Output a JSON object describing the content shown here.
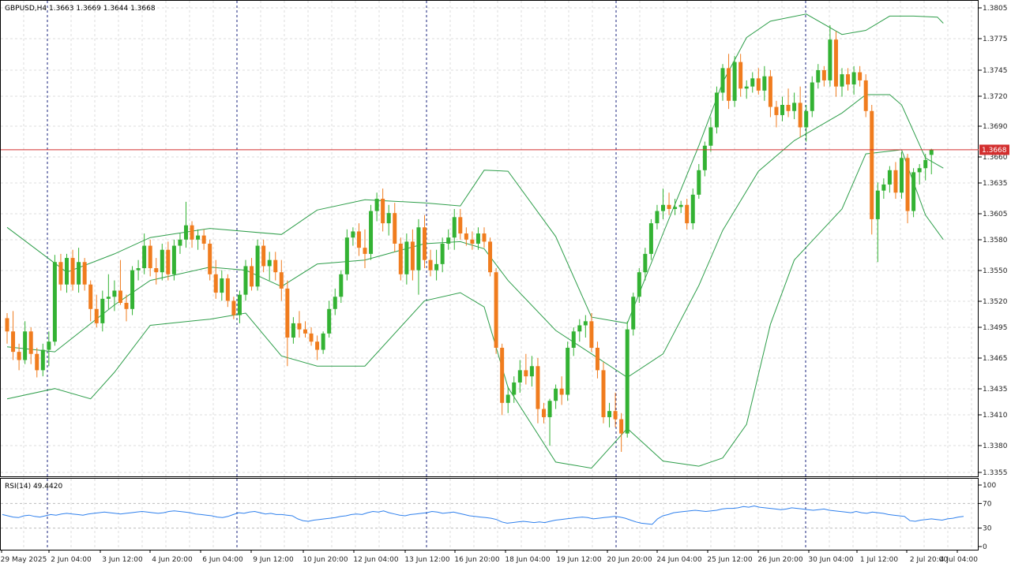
{
  "main_pane": {
    "header": "GBPUSD,H4  1.3663 1.3669 1.3644 1.3668",
    "price_ticks": [
      "1.3805",
      "1.3775",
      "1.3745",
      "1.3720",
      "1.3690",
      "1.3660",
      "1.3635",
      "1.3605",
      "1.3580",
      "1.3550",
      "1.3520",
      "1.3495",
      "1.3465",
      "1.3435",
      "1.3410",
      "1.3380",
      "1.3355"
    ],
    "current_price_label": "1.3668"
  },
  "rsi_pane": {
    "header": "RSI(14) 49.4420",
    "ticks": [
      "100",
      "70",
      "30",
      "0"
    ]
  },
  "time_axis": {
    "ticks": [
      "29 May 2025",
      "2 Jun 04:00",
      "3 Jun 12:00",
      "4 Jun 20:00",
      "6 Jun 04:00",
      "9 Jun 12:00",
      "10 Jun 20:00",
      "12 Jun 04:00",
      "13 Jun 12:00",
      "16 Jun 20:00",
      "18 Jun 04:00",
      "19 Jun 12:00",
      "20 Jun 20:00",
      "24 Jun 04:00",
      "25 Jun 12:00",
      "26 Jun 20:00",
      "30 Jun 04:00",
      "1 Jul 12:00",
      "2 Jul 20:00",
      "4 Jul 04:00"
    ]
  },
  "colors": {
    "bull": "#33b233",
    "bear": "#f07c1e",
    "band": "#2e9e4a",
    "grid": "#dcdcdc",
    "separator": "#1a237e",
    "price_line": "#d32f2f",
    "price_label_bg": "#d32f2f",
    "rsi_line": "#2f80ed",
    "axis_text": "#222222"
  },
  "chart_data": {
    "type": "candlestick",
    "symbol": "GBPUSD",
    "timeframe": "H4",
    "y_range": [
      1.3348,
      1.3814
    ],
    "rsi_range": [
      0,
      100
    ],
    "candles": [
      [
        1.3503,
        1.3508,
        1.3478,
        1.349
      ],
      [
        1.349,
        1.351,
        1.3462,
        1.347
      ],
      [
        1.347,
        1.3478,
        1.3452,
        1.3462
      ],
      [
        1.3462,
        1.35,
        1.3458,
        1.349
      ],
      [
        1.349,
        1.3494,
        1.3458,
        1.3468
      ],
      [
        1.3468,
        1.3474,
        1.3445,
        1.3452
      ],
      [
        1.3452,
        1.3478,
        1.3446,
        1.3472
      ],
      [
        1.3472,
        1.349,
        1.3456,
        1.348
      ],
      [
        1.348,
        1.3565,
        1.3476,
        1.3558
      ],
      [
        1.3558,
        1.3566,
        1.353,
        1.3536
      ],
      [
        1.3536,
        1.3566,
        1.3528,
        1.3562
      ],
      [
        1.3562,
        1.357,
        1.353,
        1.3536
      ],
      [
        1.3536,
        1.3572,
        1.3528,
        1.3558
      ],
      [
        1.3558,
        1.3562,
        1.353,
        1.3536
      ],
      [
        1.3536,
        1.354,
        1.35,
        1.3512
      ],
      [
        1.3512,
        1.3526,
        1.3494,
        1.3498
      ],
      [
        1.3498,
        1.353,
        1.349,
        1.3522
      ],
      [
        1.3522,
        1.3546,
        1.3512,
        1.3524
      ],
      [
        1.3524,
        1.354,
        1.351,
        1.353
      ],
      [
        1.353,
        1.356,
        1.3516,
        1.3518
      ],
      [
        1.3518,
        1.3526,
        1.35,
        1.3512
      ],
      [
        1.3512,
        1.3554,
        1.3506,
        1.355
      ],
      [
        1.355,
        1.356,
        1.354,
        1.3552
      ],
      [
        1.3552,
        1.3586,
        1.3546,
        1.3574
      ],
      [
        1.3574,
        1.358,
        1.3544,
        1.3552
      ],
      [
        1.3552,
        1.3562,
        1.3536,
        1.3548
      ],
      [
        1.3548,
        1.3576,
        1.354,
        1.357
      ],
      [
        1.357,
        1.3578,
        1.354,
        1.3546
      ],
      [
        1.3546,
        1.358,
        1.354,
        1.3574
      ],
      [
        1.3574,
        1.3586,
        1.3566,
        1.358
      ],
      [
        1.358,
        1.3617,
        1.3572,
        1.3594
      ],
      [
        1.3594,
        1.3598,
        1.3572,
        1.358
      ],
      [
        1.358,
        1.359,
        1.357,
        1.3584
      ],
      [
        1.3584,
        1.359,
        1.357,
        1.3576
      ],
      [
        1.3576,
        1.358,
        1.354,
        1.3546
      ],
      [
        1.3546,
        1.356,
        1.3522,
        1.3528
      ],
      [
        1.3528,
        1.355,
        1.352,
        1.3542
      ],
      [
        1.3542,
        1.3546,
        1.3514,
        1.352
      ],
      [
        1.352,
        1.3524,
        1.3502,
        1.3506
      ],
      [
        1.3506,
        1.353,
        1.3498,
        1.3526
      ],
      [
        1.3526,
        1.356,
        1.352,
        1.3554
      ],
      [
        1.3554,
        1.3562,
        1.353,
        1.3534
      ],
      [
        1.3534,
        1.358,
        1.353,
        1.3574
      ],
      [
        1.3574,
        1.358,
        1.3548,
        1.3554
      ],
      [
        1.3554,
        1.3568,
        1.354,
        1.356
      ],
      [
        1.356,
        1.3568,
        1.354,
        1.3548
      ],
      [
        1.3548,
        1.356,
        1.352,
        1.3532
      ],
      [
        1.3532,
        1.354,
        1.3456,
        1.3484
      ],
      [
        1.3484,
        1.3504,
        1.3478,
        1.3498
      ],
      [
        1.3498,
        1.351,
        1.3484,
        1.3492
      ],
      [
        1.3492,
        1.35,
        1.3484,
        1.3488
      ],
      [
        1.3488,
        1.3494,
        1.3476,
        1.348
      ],
      [
        1.348,
        1.3486,
        1.3462,
        1.3472
      ],
      [
        1.3472,
        1.349,
        1.3468,
        1.3488
      ],
      [
        1.3488,
        1.352,
        1.3484,
        1.3512
      ],
      [
        1.3512,
        1.3532,
        1.3506,
        1.3524
      ],
      [
        1.3524,
        1.355,
        1.3518,
        1.3546
      ],
      [
        1.3546,
        1.359,
        1.354,
        1.3582
      ],
      [
        1.3582,
        1.3592,
        1.3574,
        1.3588
      ],
      [
        1.3588,
        1.3596,
        1.3564,
        1.3572
      ],
      [
        1.3572,
        1.359,
        1.3552,
        1.3566
      ],
      [
        1.3566,
        1.3614,
        1.356,
        1.3608
      ],
      [
        1.3608,
        1.3626,
        1.3598,
        1.362
      ],
      [
        1.362,
        1.363,
        1.3588,
        1.3596
      ],
      [
        1.3596,
        1.3614,
        1.3584,
        1.3606
      ],
      [
        1.3606,
        1.3616,
        1.3568,
        1.3576
      ],
      [
        1.3576,
        1.3582,
        1.354,
        1.3546
      ],
      [
        1.3546,
        1.3586,
        1.3536,
        1.3578
      ],
      [
        1.3578,
        1.359,
        1.354,
        1.355
      ],
      [
        1.355,
        1.36,
        1.3526,
        1.3592
      ],
      [
        1.3592,
        1.3604,
        1.3552,
        1.356
      ],
      [
        1.356,
        1.357,
        1.3544,
        1.355
      ],
      [
        1.355,
        1.357,
        1.354,
        1.3556
      ],
      [
        1.3556,
        1.3582,
        1.3548,
        1.3576
      ],
      [
        1.3576,
        1.359,
        1.357,
        1.3582
      ],
      [
        1.3582,
        1.361,
        1.357,
        1.3602
      ],
      [
        1.3602,
        1.361,
        1.358,
        1.3586
      ],
      [
        1.3586,
        1.3592,
        1.3574,
        1.358
      ],
      [
        1.358,
        1.3588,
        1.357,
        1.3576
      ],
      [
        1.3576,
        1.3592,
        1.357,
        1.3586
      ],
      [
        1.3586,
        1.3592,
        1.3572,
        1.3578
      ],
      [
        1.3578,
        1.3582,
        1.3544,
        1.3548
      ],
      [
        1.3548,
        1.3552,
        1.3468,
        1.3474
      ],
      [
        1.3474,
        1.3478,
        1.3408,
        1.342
      ],
      [
        1.342,
        1.3436,
        1.341,
        1.3428
      ],
      [
        1.3428,
        1.3446,
        1.342,
        1.344
      ],
      [
        1.344,
        1.3462,
        1.343,
        1.3452
      ],
      [
        1.3452,
        1.3468,
        1.3438,
        1.3446
      ],
      [
        1.3446,
        1.3466,
        1.3436,
        1.3456
      ],
      [
        1.3456,
        1.3464,
        1.34,
        1.3414
      ],
      [
        1.3414,
        1.342,
        1.34,
        1.3406
      ],
      [
        1.3406,
        1.3424,
        1.3378,
        1.3422
      ],
      [
        1.3422,
        1.3438,
        1.3414,
        1.3434
      ],
      [
        1.3434,
        1.3446,
        1.3418,
        1.3428
      ],
      [
        1.3428,
        1.348,
        1.3422,
        1.3474
      ],
      [
        1.3474,
        1.3494,
        1.3466,
        1.349
      ],
      [
        1.349,
        1.3502,
        1.348,
        1.3496
      ],
      [
        1.3496,
        1.3506,
        1.3484,
        1.35
      ],
      [
        1.35,
        1.3508,
        1.347,
        1.3474
      ],
      [
        1.3474,
        1.348,
        1.3444,
        1.3452
      ],
      [
        1.3452,
        1.346,
        1.34,
        1.3406
      ],
      [
        1.3406,
        1.342,
        1.3396,
        1.3412
      ],
      [
        1.3412,
        1.343,
        1.3396,
        1.3404
      ],
      [
        1.3404,
        1.341,
        1.3372,
        1.339
      ],
      [
        1.339,
        1.35,
        1.3386,
        1.3492
      ],
      [
        1.3492,
        1.3528,
        1.3486,
        1.3524
      ],
      [
        1.3524,
        1.3552,
        1.3518,
        1.3548
      ],
      [
        1.3548,
        1.3572,
        1.354,
        1.3566
      ],
      [
        1.3566,
        1.36,
        1.356,
        1.3596
      ],
      [
        1.3596,
        1.3614,
        1.359,
        1.3608
      ],
      [
        1.3608,
        1.363,
        1.36,
        1.3614
      ],
      [
        1.3614,
        1.3626,
        1.3604,
        1.361
      ],
      [
        1.361,
        1.362,
        1.3604,
        1.3612
      ],
      [
        1.3612,
        1.3618,
        1.3606,
        1.3614
      ],
      [
        1.3614,
        1.362,
        1.359,
        1.3596
      ],
      [
        1.3596,
        1.363,
        1.359,
        1.3624
      ],
      [
        1.3624,
        1.3654,
        1.362,
        1.3648
      ],
      [
        1.3648,
        1.3676,
        1.3642,
        1.3672
      ],
      [
        1.3672,
        1.37,
        1.3666,
        1.369
      ],
      [
        1.369,
        1.373,
        1.3684,
        1.3724
      ],
      [
        1.3724,
        1.3752,
        1.3716,
        1.3748
      ],
      [
        1.3748,
        1.3762,
        1.3708,
        1.3716
      ],
      [
        1.3716,
        1.376,
        1.371,
        1.3754
      ],
      [
        1.3754,
        1.3762,
        1.372,
        1.3728
      ],
      [
        1.3728,
        1.3736,
        1.3718,
        1.373
      ],
      [
        1.373,
        1.3744,
        1.3724,
        1.3738
      ],
      [
        1.3738,
        1.3748,
        1.3722,
        1.3726
      ],
      [
        1.3726,
        1.375,
        1.3716,
        1.374
      ],
      [
        1.374,
        1.3746,
        1.37,
        1.371
      ],
      [
        1.371,
        1.3716,
        1.369,
        1.3702
      ],
      [
        1.3702,
        1.372,
        1.3696,
        1.3712
      ],
      [
        1.3712,
        1.3728,
        1.37,
        1.3706
      ],
      [
        1.3706,
        1.3724,
        1.3698,
        1.3714
      ],
      [
        1.3714,
        1.373,
        1.368,
        1.369
      ],
      [
        1.369,
        1.3712,
        1.3676,
        1.3706
      ],
      [
        1.3706,
        1.374,
        1.37,
        1.3734
      ],
      [
        1.3734,
        1.3752,
        1.3728,
        1.3746
      ],
      [
        1.3746,
        1.375,
        1.373,
        1.3736
      ],
      [
        1.3736,
        1.379,
        1.373,
        1.3776
      ],
      [
        1.3776,
        1.3784,
        1.372,
        1.373
      ],
      [
        1.373,
        1.3748,
        1.372,
        1.3742
      ],
      [
        1.3742,
        1.3748,
        1.3726,
        1.3732
      ],
      [
        1.3732,
        1.375,
        1.3722,
        1.3744
      ],
      [
        1.3744,
        1.375,
        1.373,
        1.3736
      ],
      [
        1.3736,
        1.3742,
        1.37,
        1.3706
      ],
      [
        1.3706,
        1.3712,
        1.3585,
        1.36
      ],
      [
        1.36,
        1.3636,
        1.3558,
        1.3628
      ],
      [
        1.3628,
        1.364,
        1.362,
        1.3634
      ],
      [
        1.3634,
        1.3652,
        1.3626,
        1.3648
      ],
      [
        1.3648,
        1.3656,
        1.362,
        1.3626
      ],
      [
        1.3626,
        1.3666,
        1.362,
        1.366
      ],
      [
        1.366,
        1.3664,
        1.3596,
        1.3608
      ],
      [
        1.3608,
        1.365,
        1.3602,
        1.3646
      ],
      [
        1.3646,
        1.3654,
        1.3634,
        1.365
      ],
      [
        1.365,
        1.3664,
        1.3638,
        1.3658
      ],
      [
        1.3663,
        1.3669,
        1.3644,
        1.3668
      ]
    ],
    "bollinger": {
      "upper": [
        [
          0,
          1.3592
        ],
        [
          10,
          1.3548
        ],
        [
          18,
          1.3566
        ],
        [
          24,
          1.3582
        ],
        [
          34,
          1.3591
        ],
        [
          46,
          1.3585
        ],
        [
          52,
          1.3609
        ],
        [
          60,
          1.3619
        ],
        [
          70,
          1.3616
        ],
        [
          76,
          1.3613
        ],
        [
          80,
          1.3648
        ],
        [
          84,
          1.3647
        ],
        [
          92,
          1.3583
        ],
        [
          98,
          1.3504
        ],
        [
          104,
          1.3498
        ],
        [
          110,
          1.3586
        ],
        [
          116,
          1.3672
        ],
        [
          120,
          1.3734
        ],
        [
          124,
          1.3778
        ],
        [
          128,
          1.3794
        ],
        [
          134,
          1.3801
        ],
        [
          140,
          1.3781
        ],
        [
          144,
          1.3785
        ],
        [
          148,
          1.3799
        ],
        [
          152,
          1.3799
        ],
        [
          156,
          1.3798
        ],
        [
          157,
          1.3792
        ]
      ],
      "middle": [
        [
          0,
          1.3475
        ],
        [
          8,
          1.347
        ],
        [
          18,
          1.3516
        ],
        [
          24,
          1.354
        ],
        [
          34,
          1.3553
        ],
        [
          40,
          1.355
        ],
        [
          46,
          1.3534
        ],
        [
          52,
          1.3556
        ],
        [
          60,
          1.356
        ],
        [
          70,
          1.3576
        ],
        [
          76,
          1.3578
        ],
        [
          80,
          1.3571
        ],
        [
          84,
          1.354
        ],
        [
          92,
          1.3491
        ],
        [
          98,
          1.3468
        ],
        [
          104,
          1.3445
        ],
        [
          110,
          1.3468
        ],
        [
          116,
          1.3535
        ],
        [
          120,
          1.3589
        ],
        [
          126,
          1.3647
        ],
        [
          132,
          1.3677
        ],
        [
          140,
          1.3704
        ],
        [
          144,
          1.3722
        ],
        [
          148,
          1.3722
        ],
        [
          150,
          1.3712
        ],
        [
          154,
          1.366
        ],
        [
          157,
          1.365
        ]
      ],
      "lower": [
        [
          0,
          1.3424
        ],
        [
          8,
          1.3434
        ],
        [
          14,
          1.3424
        ],
        [
          18,
          1.345
        ],
        [
          24,
          1.3496
        ],
        [
          34,
          1.3502
        ],
        [
          40,
          1.3508
        ],
        [
          46,
          1.3466
        ],
        [
          52,
          1.3456
        ],
        [
          60,
          1.3456
        ],
        [
          70,
          1.352
        ],
        [
          76,
          1.3528
        ],
        [
          80,
          1.3514
        ],
        [
          84,
          1.3435
        ],
        [
          92,
          1.3362
        ],
        [
          98,
          1.3356
        ],
        [
          104,
          1.3395
        ],
        [
          110,
          1.3363
        ],
        [
          116,
          1.3358
        ],
        [
          120,
          1.3366
        ],
        [
          124,
          1.3399
        ],
        [
          128,
          1.3497
        ],
        [
          132,
          1.356
        ],
        [
          140,
          1.361
        ],
        [
          144,
          1.3664
        ],
        [
          150,
          1.3668
        ],
        [
          154,
          1.3604
        ],
        [
          157,
          1.358
        ]
      ]
    },
    "rsi": [
      52,
      50,
      48,
      47,
      50,
      51,
      49,
      48,
      50,
      52,
      51,
      53,
      54,
      53,
      52,
      51,
      53,
      54,
      55,
      56,
      55,
      54,
      53,
      54,
      55,
      56,
      57,
      56,
      55,
      54,
      55,
      57,
      58,
      57,
      56,
      55,
      53,
      52,
      51,
      50,
      48,
      47,
      49,
      52,
      55,
      54,
      56,
      57,
      55,
      53,
      54,
      52,
      52,
      51,
      50,
      45,
      42,
      41,
      43,
      44,
      45,
      46,
      47,
      49,
      50,
      52,
      53,
      52,
      55,
      57,
      56,
      58,
      55,
      53,
      51,
      50,
      52,
      53,
      54,
      55,
      57,
      56,
      54,
      55,
      56,
      54,
      52,
      50,
      49,
      48,
      47,
      46,
      44,
      40,
      38,
      39,
      40,
      41,
      40,
      39,
      40,
      39,
      41,
      43,
      44,
      45,
      46,
      47,
      48,
      47,
      45,
      46,
      47,
      48,
      49,
      48,
      46,
      43,
      40,
      38,
      37,
      36,
      45,
      50,
      52,
      55,
      56,
      57,
      58,
      59,
      58,
      57,
      58,
      59,
      61,
      62,
      62,
      63,
      65,
      64,
      66,
      64,
      63,
      62,
      61,
      60,
      61,
      63,
      62,
      61,
      60,
      59,
      60,
      61,
      59,
      58,
      57,
      56,
      55,
      57,
      55,
      54,
      56,
      55,
      54,
      52,
      51,
      50,
      49,
      42,
      41,
      43,
      44,
      45,
      44,
      43,
      45,
      46,
      48,
      49
    ]
  }
}
